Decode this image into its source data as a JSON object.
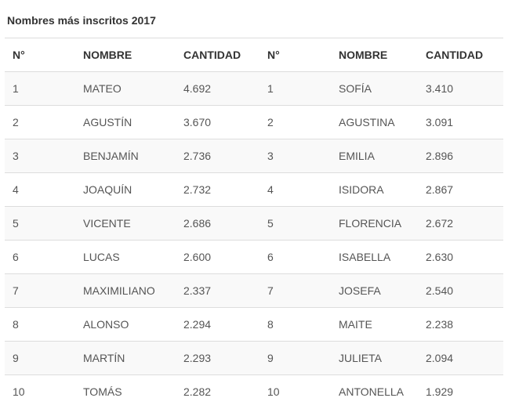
{
  "title": "Nombres más inscritos 2017",
  "headers": [
    "N°",
    "NOMBRE",
    "CANTIDAD",
    "N°",
    "NOMBRE",
    "CANTIDAD"
  ],
  "rows": [
    [
      "1",
      "MATEO",
      "4.692",
      "1",
      "SOFÍA",
      "3.410"
    ],
    [
      "2",
      "AGUSTÍN",
      "3.670",
      "2",
      "AGUSTINA",
      "3.091"
    ],
    [
      "3",
      "BENJAMÍN",
      "2.736",
      "3",
      "EMILIA",
      "2.896"
    ],
    [
      "4",
      "JOAQUÍN",
      "2.732",
      "4",
      "ISIDORA",
      "2.867"
    ],
    [
      "5",
      "VICENTE",
      "2.686",
      "5",
      "FLORENCIA",
      "2.672"
    ],
    [
      "6",
      "LUCAS",
      "2.600",
      "6",
      "ISABELLA",
      "2.630"
    ],
    [
      "7",
      "MAXIMILIANO",
      "2.337",
      "7",
      "JOSEFA",
      "2.540"
    ],
    [
      "8",
      "ALONSO",
      "2.294",
      "8",
      "MAITE",
      "2.238"
    ],
    [
      "9",
      "MARTÍN",
      "2.293",
      "9",
      "JULIETA",
      "2.094"
    ],
    [
      "10",
      "TOMÁS",
      "2.282",
      "10",
      "ANTONELLA",
      "1.929"
    ]
  ]
}
